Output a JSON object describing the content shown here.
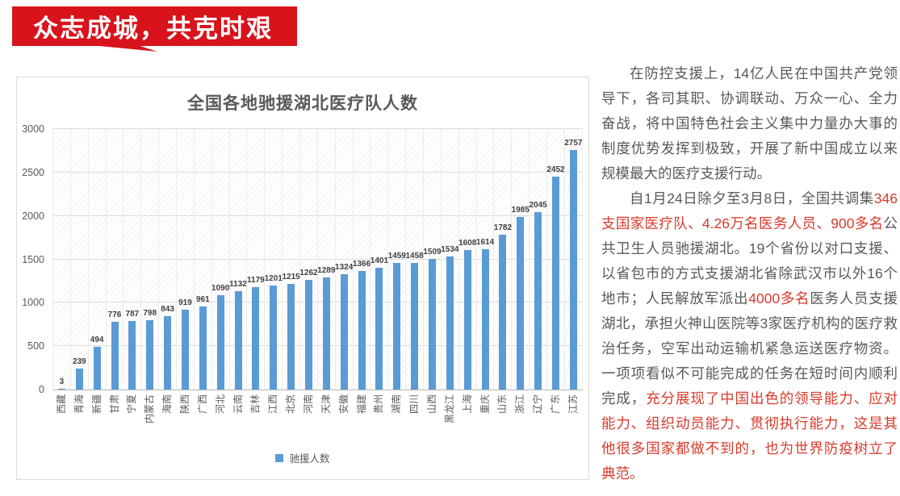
{
  "banner": {
    "title": "众志成城，共克时艰"
  },
  "colors": {
    "banner_red": "#d8131c",
    "bar_blue": "#5b9bd5",
    "text_red": "#d93a2b",
    "body_text": "#595959"
  },
  "chart_data": {
    "type": "bar",
    "title": "全国各地驰援湖北医疗队人数",
    "legend": "驰援人数",
    "xlabel": "",
    "ylabel": "",
    "ylim": [
      0,
      3000
    ],
    "yticks": [
      0,
      500,
      1000,
      1500,
      2000,
      2500,
      3000
    ],
    "grid": true,
    "legend_position": "bottom",
    "bar_color": "#5b9bd5",
    "categories": [
      "西藏",
      "青海",
      "新疆",
      "甘肃",
      "宁夏",
      "内蒙古",
      "海南",
      "陕西",
      "广西",
      "河北",
      "云南",
      "吉林",
      "江西",
      "北京",
      "河南",
      "天津",
      "安徽",
      "福建",
      "贵州",
      "湖南",
      "四川",
      "山西",
      "黑龙江",
      "上海",
      "重庆",
      "山东",
      "浙江",
      "辽宁",
      "广东",
      "江苏"
    ],
    "values": [
      3,
      239,
      494,
      776,
      787,
      798,
      843,
      919,
      961,
      1090,
      1132,
      1179,
      1201,
      1215,
      1262,
      1289,
      1324,
      1366,
      1401,
      1459,
      1458,
      1509,
      1534,
      1608,
      1614,
      1782,
      1985,
      2045,
      2452,
      2757
    ]
  },
  "article": {
    "paragraphs": [
      {
        "segments": [
          {
            "red": false,
            "text": "在防控支援上，14亿人民在中国共产党领导下，各司其职、协调联动、万众一心、全力奋战，将中国特色社会主义集中力量办大事的制度优势发挥到极致，开展了新中国成立以来规模最大的医疗支援行动。"
          }
        ]
      },
      {
        "segments": [
          {
            "red": false,
            "text": "自1月24日除夕至3月8日，全国共调集"
          },
          {
            "red": true,
            "text": "346支国家医疗队、4.26万名医务人员、900多名"
          },
          {
            "red": false,
            "text": "公共卫生人员驰援湖北。19个省份以对口支援、以省包市的方式支援湖北省除武汉市以外16个地市；人民解放军派出"
          },
          {
            "red": true,
            "text": "4000多名"
          },
          {
            "red": false,
            "text": "医务人员支援湖北，承担火神山医院等3家医疗机构的医疗救治任务，空军出动运输机紧急运送医疗物资。一项项看似不可能完成的任务在短时间内顺利完成，"
          },
          {
            "red": true,
            "text": "充分展现了中国出色的领导能力、应对能力、组织动员能力、贯彻执行能力，这是其他很多国家都做不到的，也为世界防疫树立了典范。"
          }
        ]
      }
    ]
  }
}
